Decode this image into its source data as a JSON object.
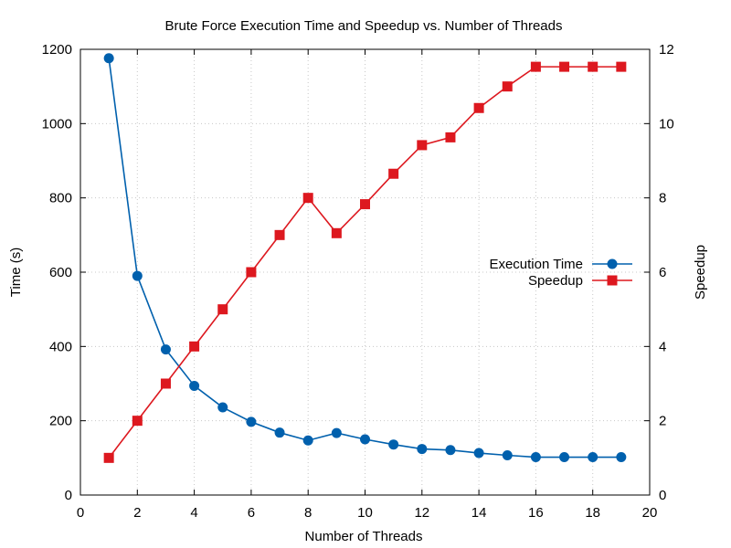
{
  "chart_data": {
    "type": "line",
    "title": "Brute Force Execution Time and Speedup vs. Number of Threads",
    "xlabel": "Number of Threads",
    "ylabel_left": "Time (s)",
    "ylabel_right": "Speedup",
    "xlim": [
      0,
      20
    ],
    "ylim_left": [
      0,
      1200
    ],
    "ylim_right": [
      0,
      12
    ],
    "x_ticks": [
      0,
      2,
      4,
      6,
      8,
      10,
      12,
      14,
      16,
      18,
      20
    ],
    "y_left_ticks": [
      0,
      200,
      400,
      600,
      800,
      1000,
      1200
    ],
    "y_right_ticks": [
      0,
      2,
      4,
      6,
      8,
      10,
      12
    ],
    "grid": true,
    "legend_position": "right-middle",
    "x": [
      1,
      2,
      3,
      4,
      5,
      6,
      7,
      8,
      9,
      10,
      11,
      12,
      13,
      14,
      15,
      16,
      17,
      18,
      19
    ],
    "series": [
      {
        "name": "Execution Time",
        "axis": "left",
        "color": "#0060ad",
        "marker": "circle",
        "values": [
          1176,
          590,
          392,
          294,
          236,
          197,
          168,
          147,
          167,
          150,
          136,
          124,
          121,
          113,
          107,
          102,
          102,
          102,
          102
        ]
      },
      {
        "name": "Speedup",
        "axis": "right",
        "color": "#dd181f",
        "marker": "square",
        "values": [
          1.0,
          2.0,
          3.0,
          4.0,
          5.0,
          6.0,
          7.0,
          8.0,
          7.05,
          7.83,
          8.65,
          9.42,
          9.63,
          10.42,
          11.0,
          11.53,
          11.53,
          11.53,
          11.53
        ]
      }
    ]
  }
}
